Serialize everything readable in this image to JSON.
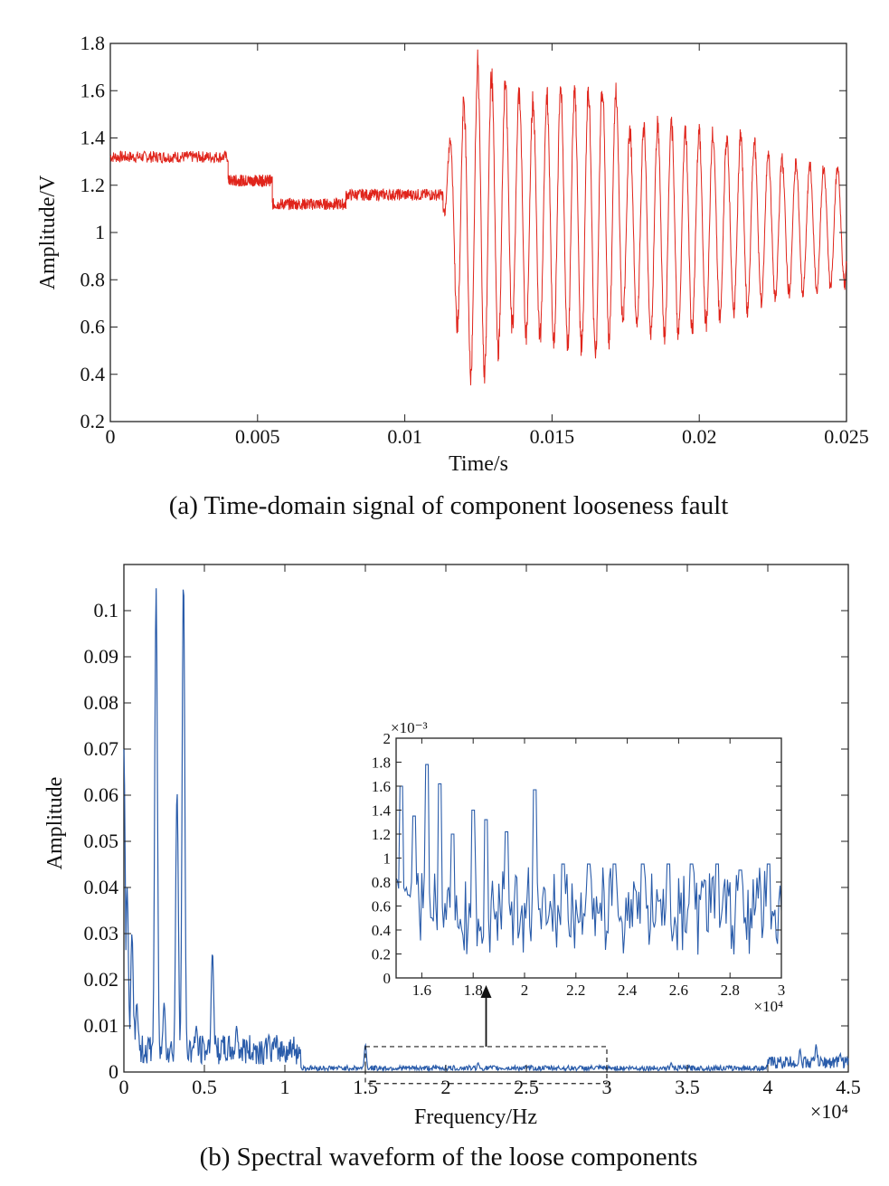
{
  "chart_data": [
    {
      "id": "a",
      "type": "line",
      "caption": "(a) Time-domain signal of component looseness fault",
      "xlabel": "Time/s",
      "ylabel": "Amplitude/V",
      "xlim": [
        0,
        0.025
      ],
      "ylim": [
        0.2,
        1.8
      ],
      "xticks": [
        0,
        0.005,
        0.01,
        0.015,
        0.02,
        0.025
      ],
      "xtick_labels": [
        "0",
        "0.005",
        "0.01",
        "0.015",
        "0.02",
        "0.025"
      ],
      "yticks": [
        0.2,
        0.4,
        0.6,
        0.8,
        1.0,
        1.2,
        1.4,
        1.6,
        1.8
      ],
      "ytick_labels": [
        "0.2",
        "0.4",
        "0.6",
        "0.8",
        "1",
        "1.2",
        "1.4",
        "1.6",
        "1.8"
      ],
      "color": "#e0241b",
      "segments": [
        {
          "x_start": 0,
          "x_end": 0.004,
          "level": 1.32
        },
        {
          "x_start": 0.004,
          "x_end": 0.0055,
          "level": 1.22
        },
        {
          "x_start": 0.0055,
          "x_end": 0.008,
          "level": 1.12
        },
        {
          "x_start": 0.008,
          "x_end": 0.0113,
          "level": 1.16
        }
      ],
      "oscillation": {
        "x_start": 0.0113,
        "x_end": 0.025,
        "period": 0.00047,
        "peaks": [
          [
            0.0113,
            1.3
          ],
          [
            0.0118,
            1.55
          ],
          [
            0.0125,
            1.77
          ],
          [
            0.013,
            1.72
          ],
          [
            0.0145,
            1.6
          ],
          [
            0.0152,
            1.65
          ],
          [
            0.0165,
            1.65
          ],
          [
            0.017,
            1.71
          ],
          [
            0.0175,
            1.47
          ],
          [
            0.0185,
            1.5
          ],
          [
            0.0195,
            1.48
          ],
          [
            0.021,
            1.44
          ],
          [
            0.0216,
            1.45
          ],
          [
            0.0225,
            1.35
          ],
          [
            0.0235,
            1.31
          ],
          [
            0.025,
            1.3
          ]
        ],
        "troughs": [
          [
            0.0113,
            1.1
          ],
          [
            0.0119,
            0.42
          ],
          [
            0.0125,
            0.28
          ],
          [
            0.013,
            0.38
          ],
          [
            0.0135,
            0.55
          ],
          [
            0.0145,
            0.5
          ],
          [
            0.016,
            0.45
          ],
          [
            0.0165,
            0.42
          ],
          [
            0.0175,
            0.6
          ],
          [
            0.0185,
            0.5
          ],
          [
            0.02,
            0.55
          ],
          [
            0.0205,
            0.6
          ],
          [
            0.0215,
            0.62
          ],
          [
            0.0225,
            0.7
          ],
          [
            0.0235,
            0.72
          ],
          [
            0.025,
            0.76
          ]
        ]
      }
    },
    {
      "id": "b",
      "type": "line",
      "caption": "(b) Spectral waveform of the loose components",
      "xlabel": "Frequency/Hz",
      "ylabel": "Amplitude",
      "x_exponent": "×10⁴",
      "xlim": [
        0,
        4.5
      ],
      "ylim": [
        0,
        0.11
      ],
      "xticks": [
        0,
        0.5,
        1,
        1.5,
        2,
        2.5,
        3,
        3.5,
        4,
        4.5
      ],
      "xtick_labels": [
        "0",
        "0.5",
        "1",
        "1.5",
        "2",
        "2.5",
        "3",
        "3.5",
        "4",
        "4.5"
      ],
      "yticks": [
        0,
        0.01,
        0.02,
        0.03,
        0.04,
        0.05,
        0.06,
        0.07,
        0.08,
        0.09,
        0.1
      ],
      "ytick_labels": [
        "0",
        "0.01",
        "0.02",
        "0.03",
        "0.04",
        "0.05",
        "0.06",
        "0.07",
        "0.08",
        "0.09",
        "0.1"
      ],
      "color": "#2a5caa",
      "peaks": [
        [
          0.0,
          0.07
        ],
        [
          0.02,
          0.04
        ],
        [
          0.05,
          0.03
        ],
        [
          0.08,
          0.015
        ],
        [
          0.2,
          0.105
        ],
        [
          0.25,
          0.015
        ],
        [
          0.33,
          0.061
        ],
        [
          0.37,
          0.107
        ],
        [
          0.45,
          0.01
        ],
        [
          0.55,
          0.026
        ],
        [
          0.7,
          0.01
        ],
        [
          0.9,
          0.008
        ],
        [
          1.05,
          0.005
        ],
        [
          1.5,
          0.006
        ],
        [
          2.2,
          0.002
        ],
        [
          3.4,
          0.002
        ],
        [
          4.2,
          0.005
        ],
        [
          4.3,
          0.006
        ],
        [
          4.45,
          0.004
        ]
      ],
      "zoom_box": {
        "x": [
          1.5,
          3.0
        ],
        "y": [
          -0.0025,
          0.0055
        ]
      },
      "inset": {
        "xlim": [
          1.5,
          3.0
        ],
        "ylim": [
          0,
          2.0
        ],
        "x_exponent": "×10⁴",
        "y_exponent": "×10⁻³",
        "xticks": [
          1.6,
          1.8,
          2.0,
          2.2,
          2.4,
          2.6,
          2.8,
          3.0
        ],
        "xtick_labels": [
          "1.6",
          "1.8",
          "2",
          "2.2",
          "2.4",
          "2.6",
          "2.8",
          "3"
        ],
        "yticks": [
          0,
          0.2,
          0.4,
          0.6,
          0.8,
          1.0,
          1.2,
          1.4,
          1.6,
          1.8,
          2.0
        ],
        "ytick_labels": [
          "0",
          "0.2",
          "0.4",
          "0.6",
          "0.8",
          "1",
          "1.2",
          "1.4",
          "1.6",
          "1.8",
          "2"
        ],
        "peaks": [
          [
            1.52,
            1.6
          ],
          [
            1.57,
            1.35
          ],
          [
            1.62,
            1.78
          ],
          [
            1.67,
            1.62
          ],
          [
            1.72,
            1.2
          ],
          [
            1.8,
            1.4
          ],
          [
            1.85,
            1.32
          ],
          [
            1.93,
            1.22
          ],
          [
            2.04,
            1.57
          ],
          [
            2.15,
            0.95
          ],
          [
            2.25,
            0.95
          ],
          [
            2.35,
            0.95
          ],
          [
            2.46,
            0.95
          ],
          [
            2.56,
            0.95
          ],
          [
            2.65,
            0.95
          ],
          [
            2.75,
            0.95
          ],
          [
            2.84,
            0.9
          ],
          [
            2.95,
            0.95
          ]
        ],
        "baseline": 0.55
      }
    }
  ]
}
